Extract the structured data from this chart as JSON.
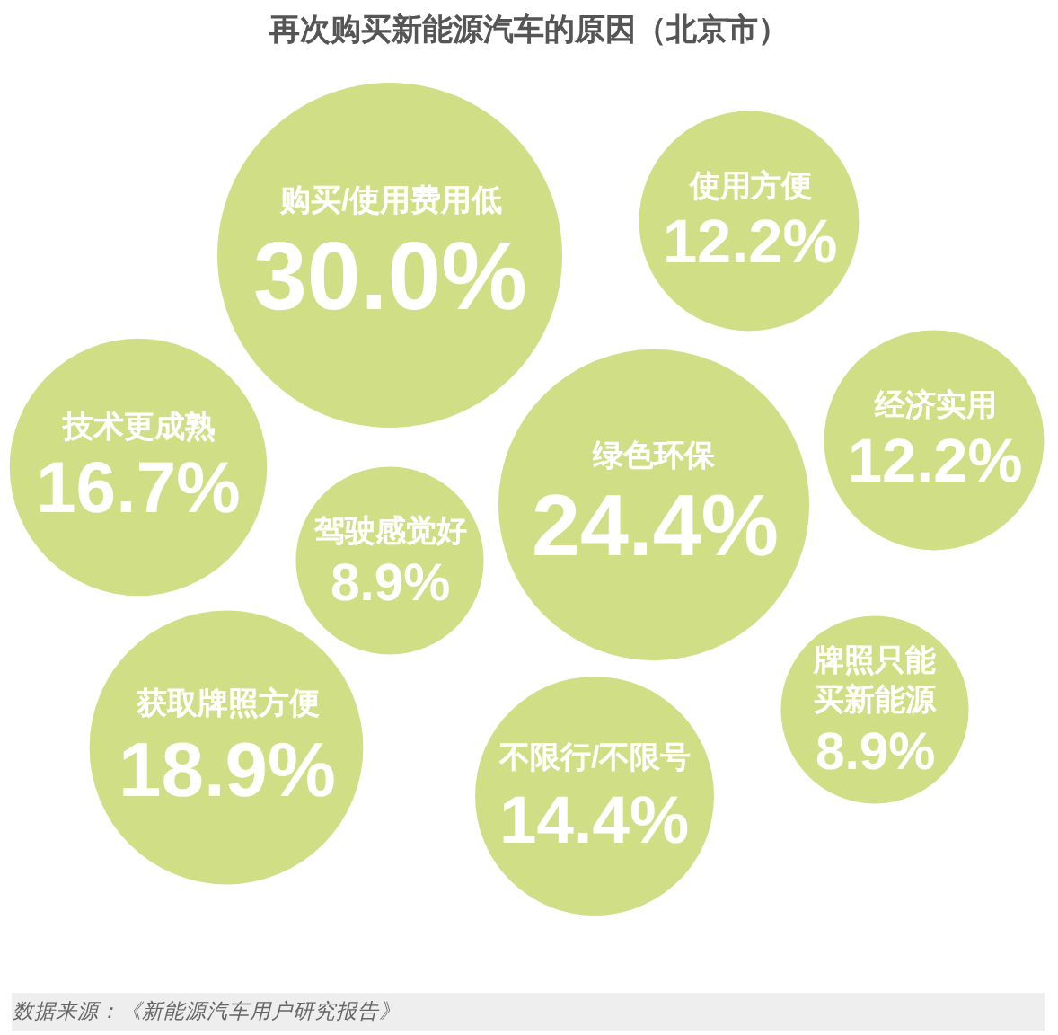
{
  "chart_data": {
    "type": "other",
    "title": "再次购买新能源汽车的原因（北京市）",
    "categories": [
      "购买/使用费用低",
      "使用方便",
      "技术更成熟",
      "驾驶感觉好",
      "绿色环保",
      "经济实用",
      "获取牌照方便",
      "不限行/不限号",
      "牌照只能买新能源"
    ],
    "values": [
      30.0,
      12.2,
      16.7,
      8.9,
      24.4,
      12.2,
      18.9,
      14.4,
      8.9
    ],
    "value_labels": [
      "30.0%",
      "12.2%",
      "16.7%",
      "8.9%",
      "24.4%",
      "12.2%",
      "18.9%",
      "14.4%",
      "8.9%"
    ],
    "color": "#d0df86",
    "annotations": [
      "数据来源：《新能源汽车用户研究报告》"
    ]
  }
}
